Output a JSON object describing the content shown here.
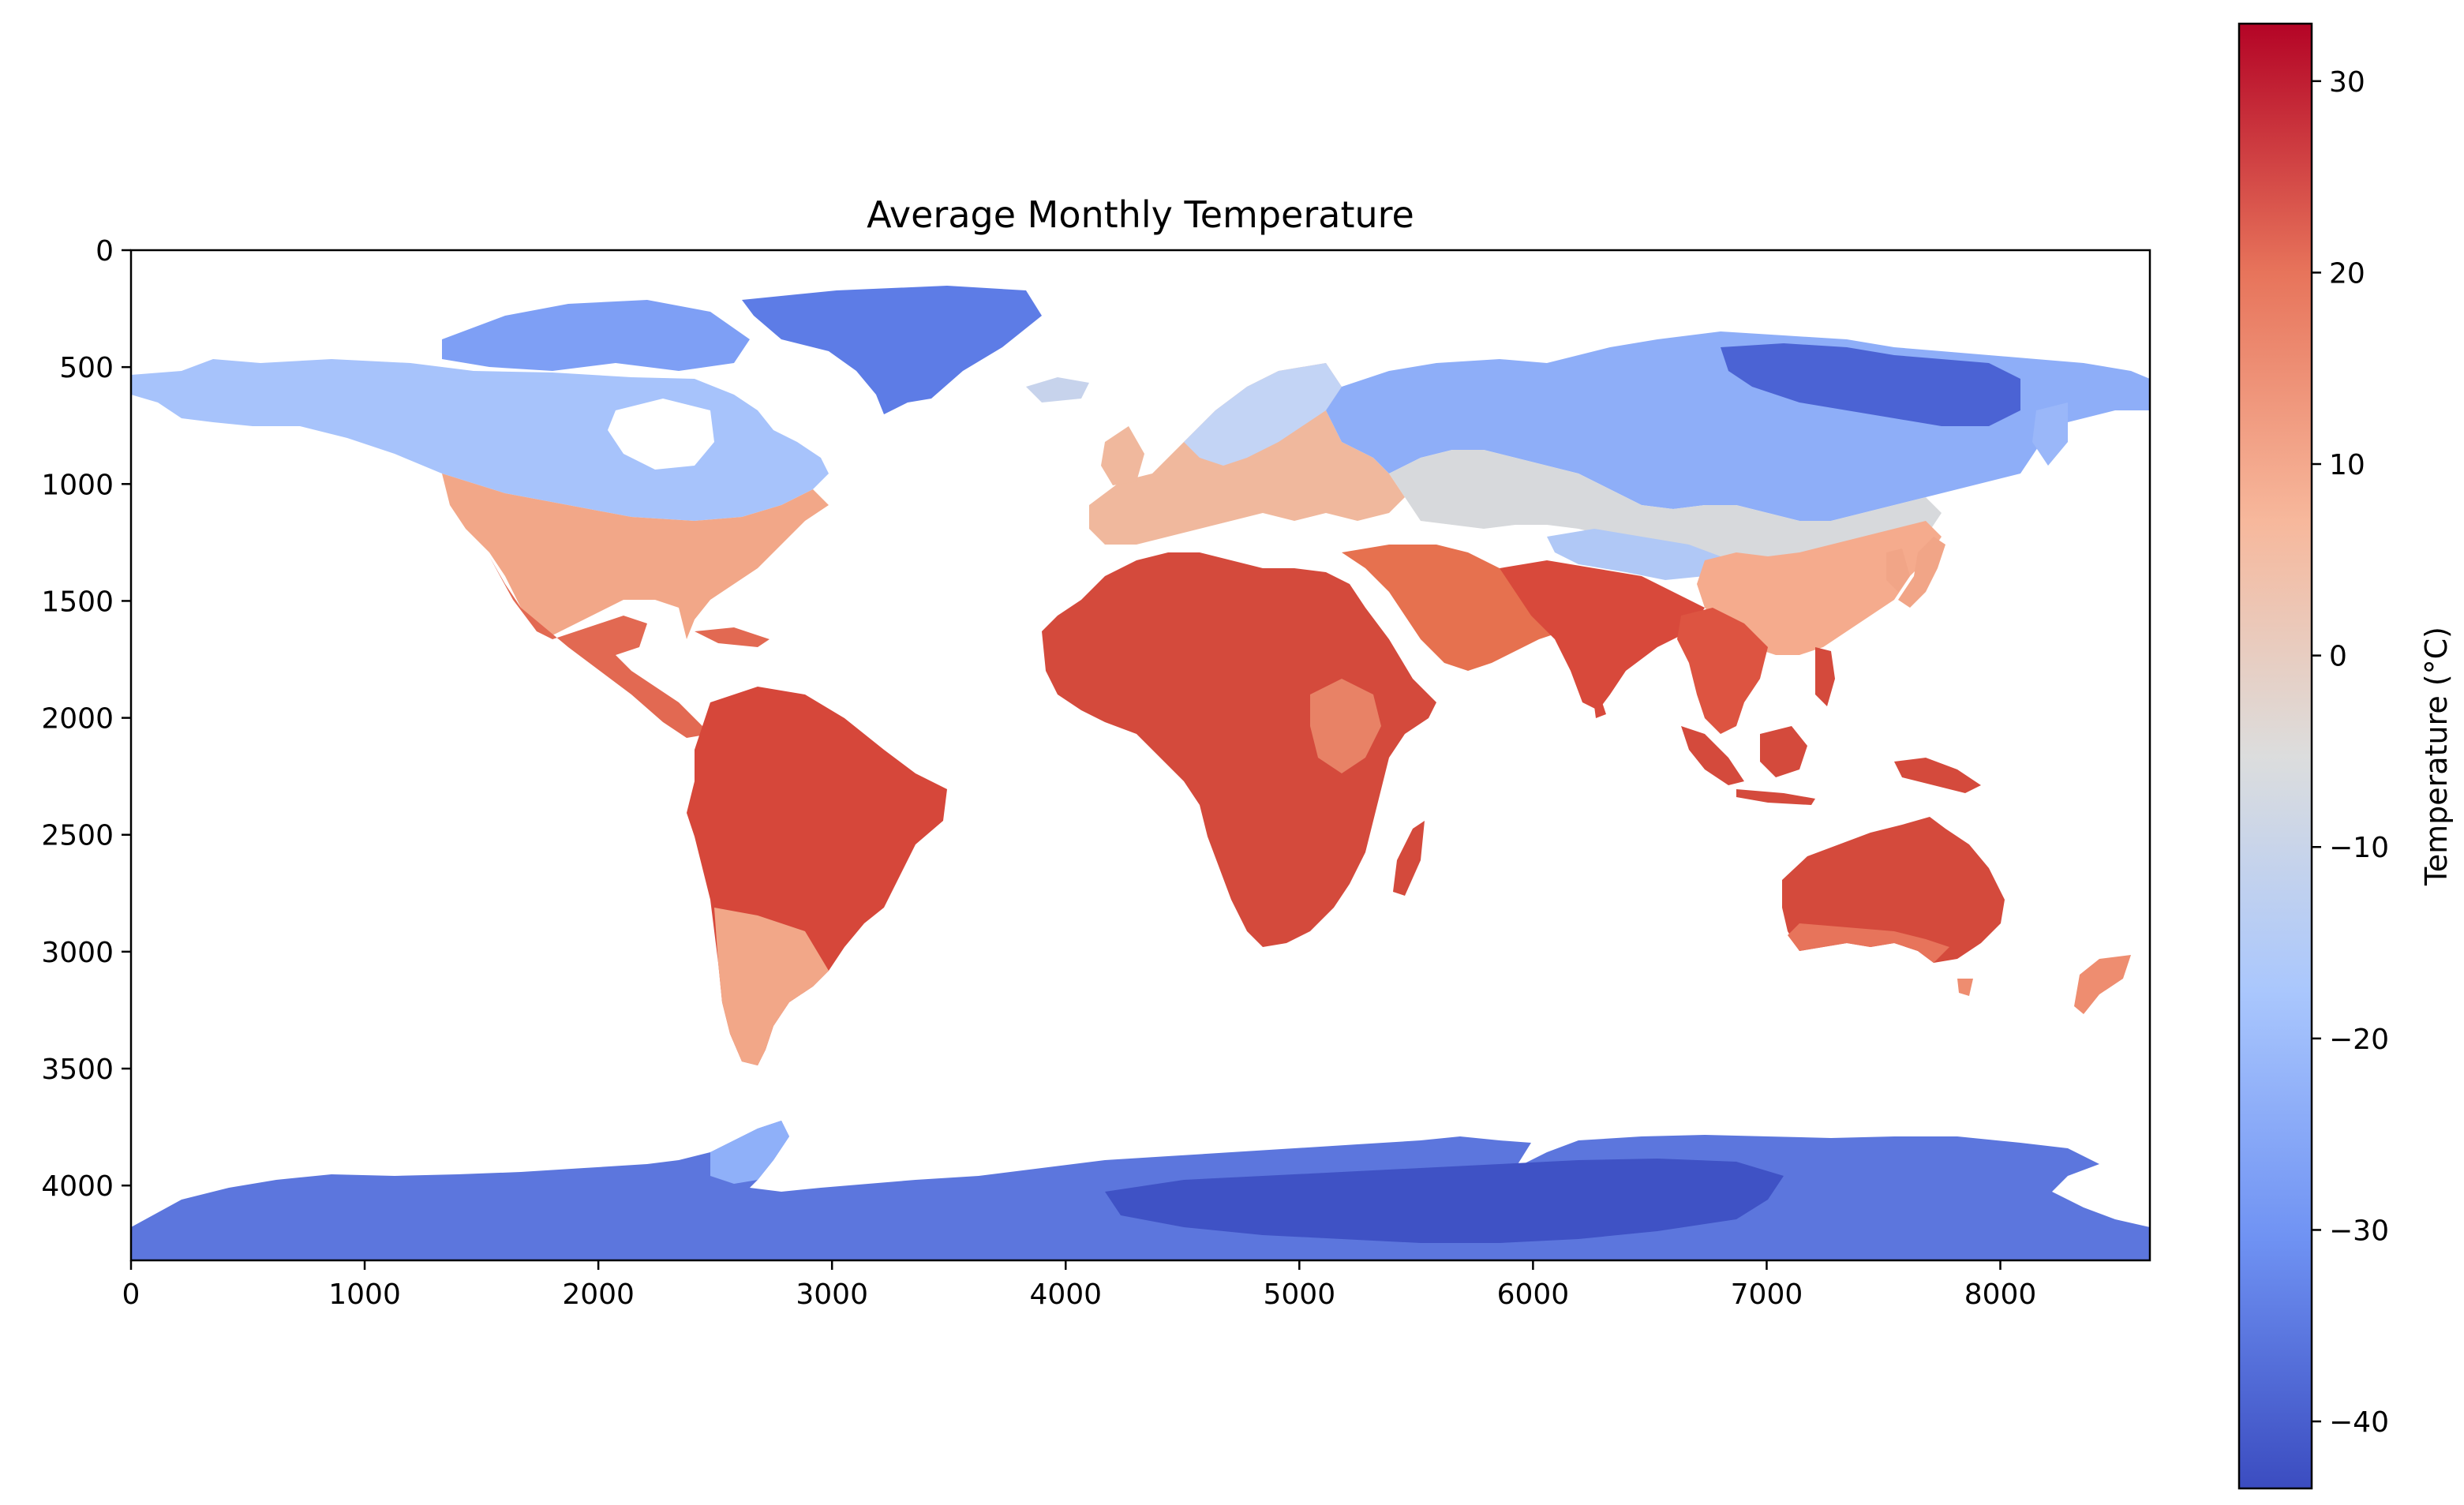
{
  "chart_data": {
    "type": "heatmap",
    "title": "Average Monthly Temperature",
    "xlabel": "",
    "ylabel": "",
    "x_ticks": [
      0,
      1000,
      2000,
      3000,
      4000,
      5000,
      6000,
      7000,
      8000
    ],
    "y_ticks": [
      0,
      500,
      1000,
      1500,
      2000,
      2500,
      3000,
      3500,
      4000
    ],
    "xlim": [
      0,
      8640
    ],
    "ylim": [
      4320,
      0
    ],
    "colorbar": {
      "label": "Temperature (°C)",
      "ticks": [
        30,
        20,
        10,
        0,
        -10,
        -20,
        -30,
        -40
      ],
      "range": [
        -43.5,
        33
      ],
      "colormap": "coolwarm",
      "colors": [
        "#3b4cc0",
        "#6f92f3",
        "#aac7fd",
        "#dcdddd",
        "#f7b89c",
        "#e7745b",
        "#b40426"
      ]
    },
    "regions": [
      {
        "name": "North America (north)",
        "temp": -12
      },
      {
        "name": "North America (south)",
        "temp": 14
      },
      {
        "name": "Greenland",
        "temp": -28
      },
      {
        "name": "Central America",
        "temp": 25
      },
      {
        "name": "South America",
        "temp": 24
      },
      {
        "name": "Europe",
        "temp": 8
      },
      {
        "name": "Russia",
        "temp": -15
      },
      {
        "name": "Africa",
        "temp": 25
      },
      {
        "name": "Middle East",
        "temp": 24
      },
      {
        "name": "South Asia",
        "temp": 24
      },
      {
        "name": "East Asia",
        "temp": 10
      },
      {
        "name": "Maritime Southeast Asia",
        "temp": 26
      },
      {
        "name": "Australia",
        "temp": 24
      },
      {
        "name": "New Zealand",
        "temp": 12
      },
      {
        "name": "Antarctica",
        "temp": -35
      }
    ]
  }
}
